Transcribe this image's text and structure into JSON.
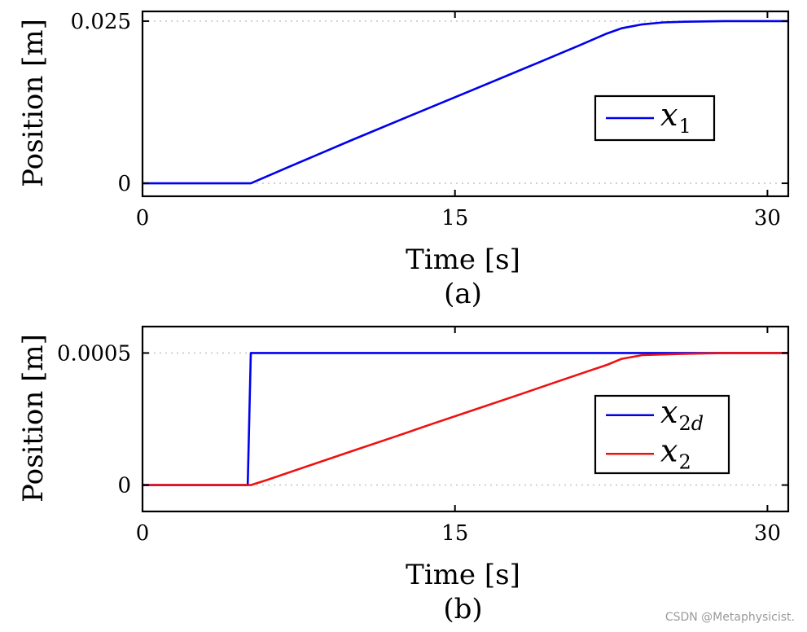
{
  "colors": {
    "blue": "#0000ee",
    "red": "#ee1111",
    "grid": "#c8c8c8"
  },
  "watermark": "CSDN @Metaphysicist.",
  "chart_data": [
    {
      "type": "line",
      "caption": "(a)",
      "xlabel": "Time [s]",
      "ylabel": "Position [m]",
      "xlim": [
        0,
        31
      ],
      "ylim": [
        -0.002,
        0.0265
      ],
      "xticks": [
        0,
        15,
        30
      ],
      "xtick_labels": [
        "0",
        "15",
        "30"
      ],
      "yticks": [
        0,
        0.025
      ],
      "ytick_labels": [
        "0",
        "0.025"
      ],
      "grid": "horizontal dotted at y ticks",
      "legend_position": "right",
      "series": [
        {
          "name": "x1",
          "name_main": "x",
          "name_sub": "1",
          "color": "blue",
          "x": [
            0,
            5.2,
            7,
            10,
            13,
            16,
            19,
            21,
            22.3,
            23,
            24,
            25,
            26,
            28,
            31
          ],
          "y": [
            0,
            0,
            0.0025,
            0.0066,
            0.0106,
            0.0146,
            0.0186,
            0.0213,
            0.0231,
            0.0239,
            0.0245,
            0.0248,
            0.0249,
            0.025,
            0.025
          ]
        }
      ]
    },
    {
      "type": "line",
      "caption": "(b)",
      "xlabel": "Time [s]",
      "ylabel": "Position [m]",
      "xlim": [
        0,
        31
      ],
      "ylim": [
        -0.0001,
        0.0006
      ],
      "xticks": [
        0,
        15,
        30
      ],
      "xtick_labels": [
        "0",
        "15",
        "30"
      ],
      "yticks": [
        0,
        0.0005
      ],
      "ytick_labels": [
        "0",
        "0.0005"
      ],
      "grid": "horizontal dotted at y ticks",
      "legend_position": "right",
      "series": [
        {
          "name": "x2d",
          "name_main": "x",
          "name_sub": "2d",
          "color": "blue",
          "x": [
            0,
            5.05,
            5.2,
            31
          ],
          "y": [
            0,
            0,
            0.0005,
            0.0005
          ]
        },
        {
          "name": "x2",
          "name_main": "x",
          "name_sub": "2",
          "color": "red",
          "x": [
            0,
            5.2,
            6,
            8,
            10,
            12,
            14,
            16,
            18,
            20,
            21.5,
            22.3,
            23,
            24,
            26,
            28,
            31
          ],
          "y": [
            0,
            0,
            2e-05,
            7.35e-05,
            0.000127,
            0.00018,
            0.000234,
            0.000287,
            0.00034,
            0.000394,
            0.000434,
            0.000455,
            0.000478,
            0.000492,
            0.000497,
            0.0005,
            0.0005
          ]
        }
      ]
    }
  ]
}
